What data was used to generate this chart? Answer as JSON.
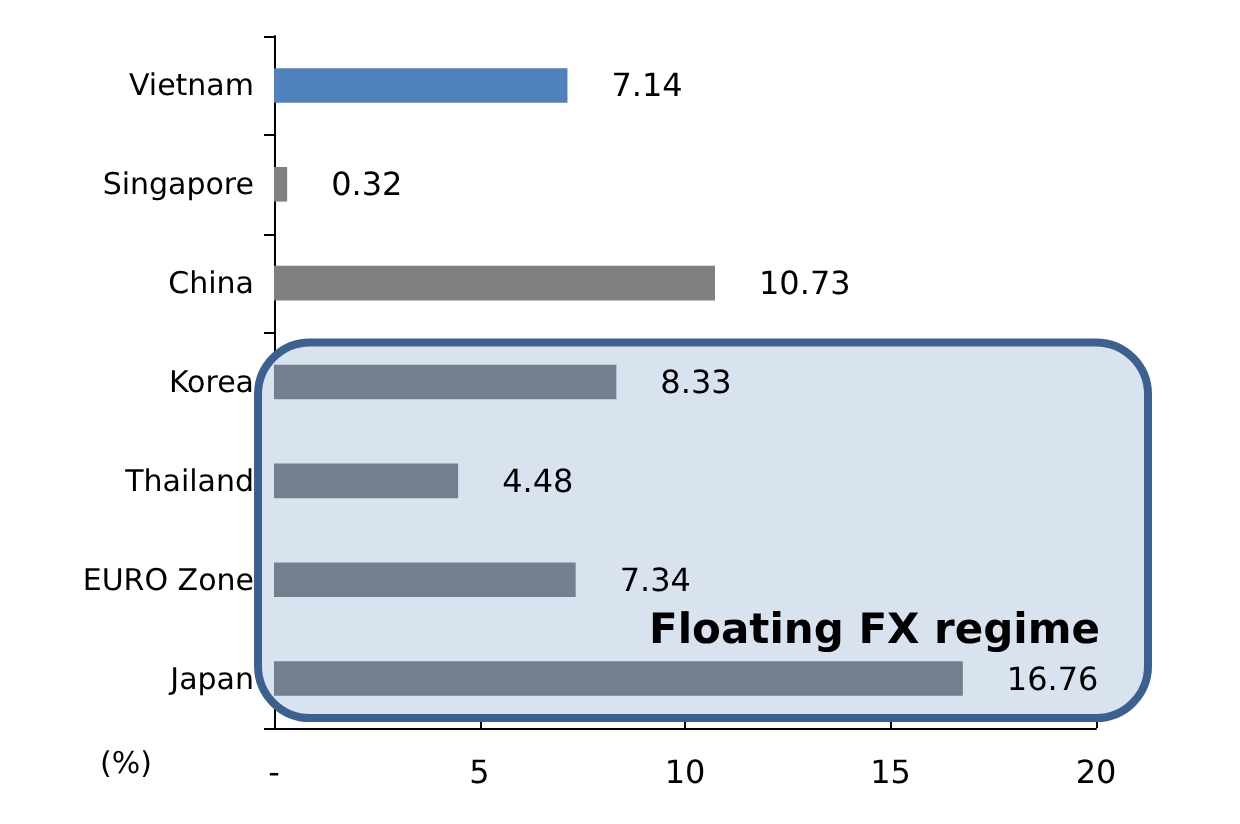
{
  "chart_data": {
    "type": "bar",
    "orientation": "horizontal",
    "categories": [
      "Vietnam",
      "Singapore",
      "China",
      "Korea",
      "Thailand",
      "EURO Zone",
      "Japan"
    ],
    "values": [
      7.14,
      0.32,
      10.73,
      8.33,
      4.48,
      7.34,
      16.76
    ],
    "colors": [
      "#4f81bd",
      "#808080",
      "#808080",
      "#737f8c",
      "#737f8c",
      "#737f8c",
      "#737f8c"
    ],
    "xlim": [
      0,
      20
    ],
    "xticks": [
      {
        "value": 0,
        "label": "-"
      },
      5,
      10,
      15,
      20
    ],
    "xlabel": "(%)",
    "data_labels": true,
    "grid": false,
    "bands": [
      {
        "axis": "y",
        "from": "Korea",
        "to": "Japan",
        "label": "Floating FX regime",
        "color": "#d9e3ef"
      }
    ]
  }
}
